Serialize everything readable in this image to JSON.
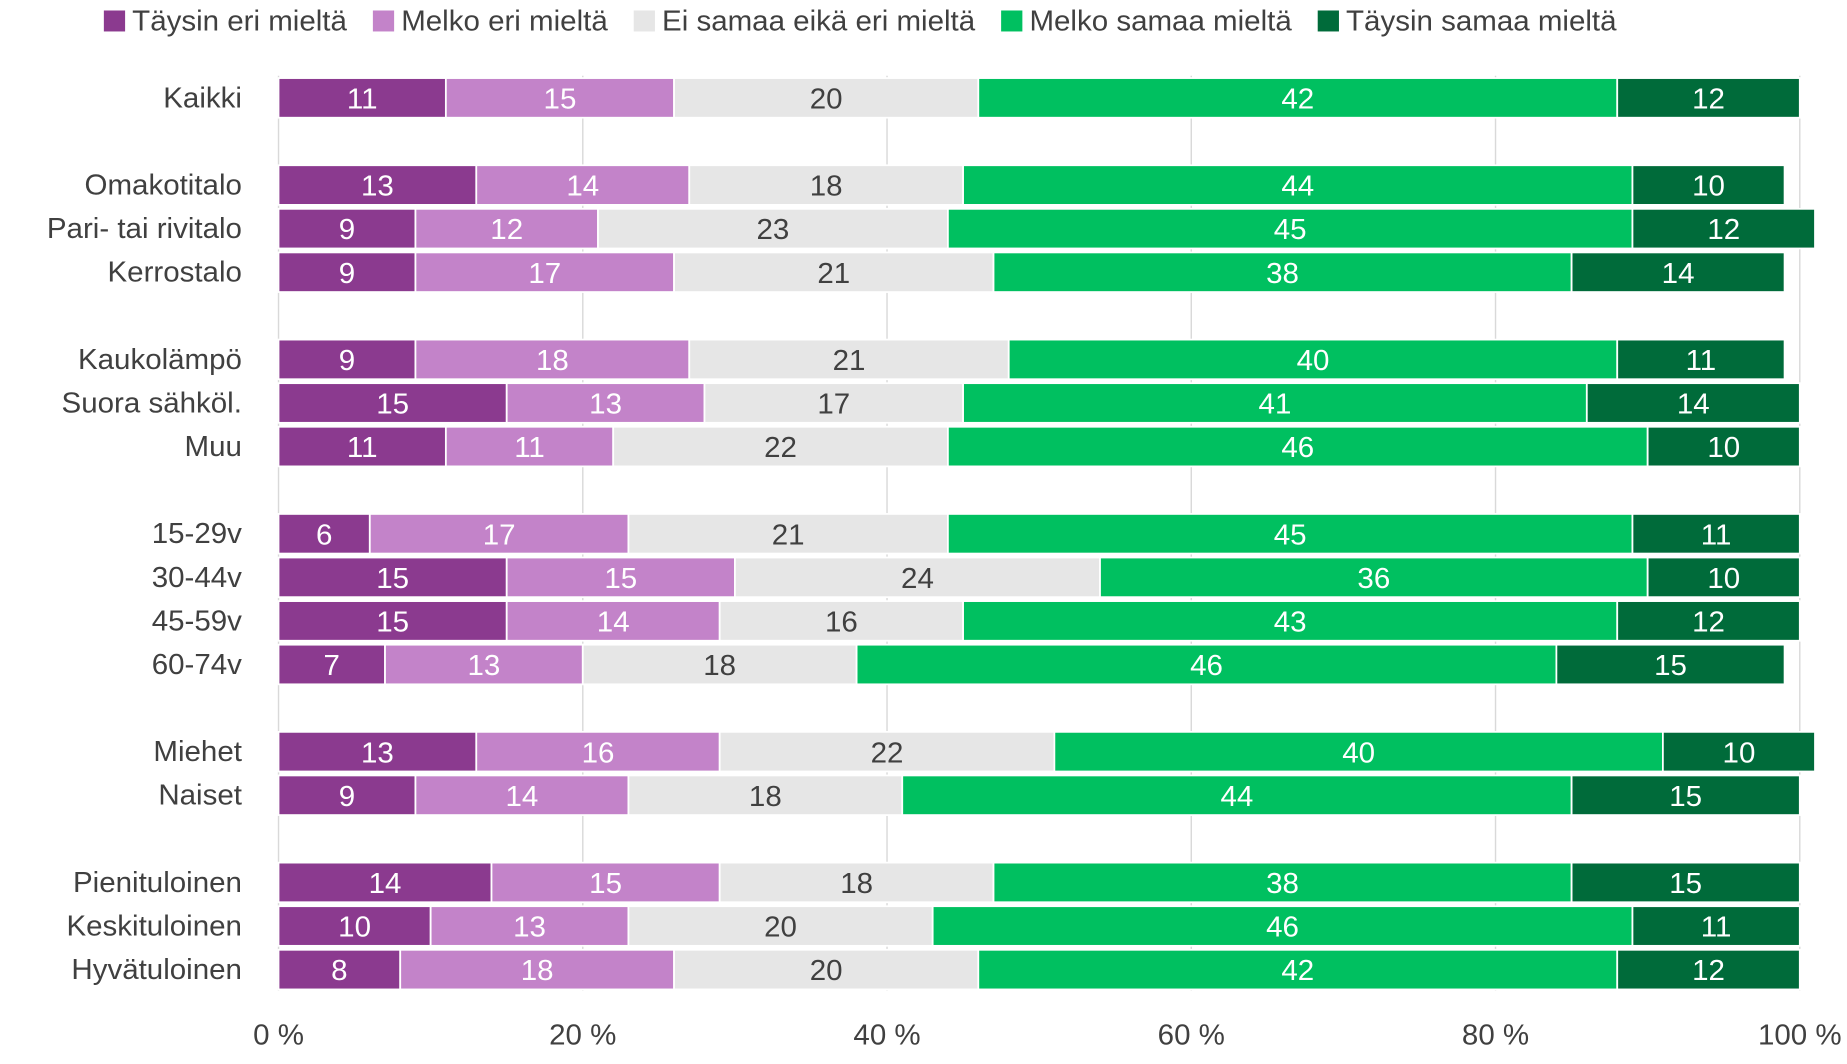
{
  "chart_data": {
    "type": "bar",
    "orientation": "horizontal",
    "stacked": true,
    "categories": [
      "Kaikki",
      "Omakotitalo",
      "Pari- tai rivitalo",
      "Kerrostalo",
      "Kaukolämpö",
      "Suora sähköl.",
      "Muu",
      "15-29v",
      "30-44v",
      "45-59v",
      "60-74v",
      "Miehet",
      "Naiset",
      "Pienituloinen",
      "Keskituloinen",
      "Hyvätuloinen"
    ],
    "series": [
      {
        "name": "Täysin eri mieltä",
        "color": "#8b3a8f",
        "label_color": "#ffffff",
        "values": [
          11,
          13,
          9,
          9,
          9,
          15,
          11,
          6,
          15,
          15,
          7,
          13,
          9,
          14,
          10,
          8
        ]
      },
      {
        "name": "Melko eri mieltä",
        "color": "#c383c9",
        "label_color": "#ffffff",
        "values": [
          15,
          14,
          12,
          17,
          18,
          13,
          11,
          17,
          15,
          14,
          13,
          16,
          14,
          15,
          13,
          18
        ]
      },
      {
        "name": "Ei samaa eikä eri mieltä",
        "color": "#e6e6e6",
        "label_color": "#404040",
        "values": [
          20,
          18,
          23,
          21,
          21,
          17,
          22,
          21,
          24,
          16,
          18,
          22,
          18,
          18,
          20,
          20
        ]
      },
      {
        "name": "Melko samaa mieltä",
        "color": "#00c060",
        "label_color": "#ffffff",
        "values": [
          42,
          44,
          45,
          38,
          40,
          41,
          46,
          45,
          36,
          43,
          46,
          40,
          44,
          38,
          46,
          42
        ]
      },
      {
        "name": "Täysin samaa mieltä",
        "color": "#006b3a",
        "label_color": "#ffffff",
        "values": [
          12,
          10,
          12,
          14,
          11,
          14,
          10,
          11,
          10,
          12,
          15,
          10,
          15,
          15,
          11,
          12
        ]
      }
    ],
    "xlim": [
      0,
      100
    ],
    "xticks": [
      {
        "value": 0,
        "label": "0 %"
      },
      {
        "value": 20,
        "label": "20 %"
      },
      {
        "value": 40,
        "label": "40 %"
      },
      {
        "value": 60,
        "label": "60 %"
      },
      {
        "value": 80,
        "label": "80 %"
      },
      {
        "value": 100,
        "label": "100 %"
      }
    ],
    "grid": true,
    "legend": "top"
  }
}
